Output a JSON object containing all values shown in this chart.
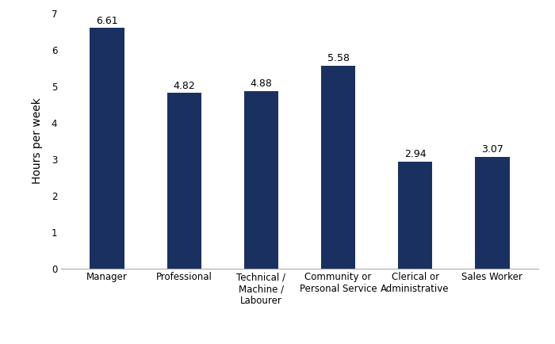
{
  "categories": [
    "Manager",
    "Professional",
    "Technical /\nMachine /\nLabourer",
    "Community or\nPersonal Service",
    "Clerical or\nAdministrative",
    "Sales Worker"
  ],
  "values": [
    6.61,
    4.82,
    4.88,
    5.58,
    2.94,
    3.07
  ],
  "bar_color": "#1a3060",
  "ylabel": "Hours per week",
  "ylim": [
    0,
    7
  ],
  "yticks": [
    0,
    1,
    2,
    3,
    4,
    5,
    6,
    7
  ],
  "label_fontsize": 9,
  "tick_fontsize": 8.5,
  "ylabel_fontsize": 10,
  "bar_width": 0.45,
  "background_color": "#ffffff"
}
